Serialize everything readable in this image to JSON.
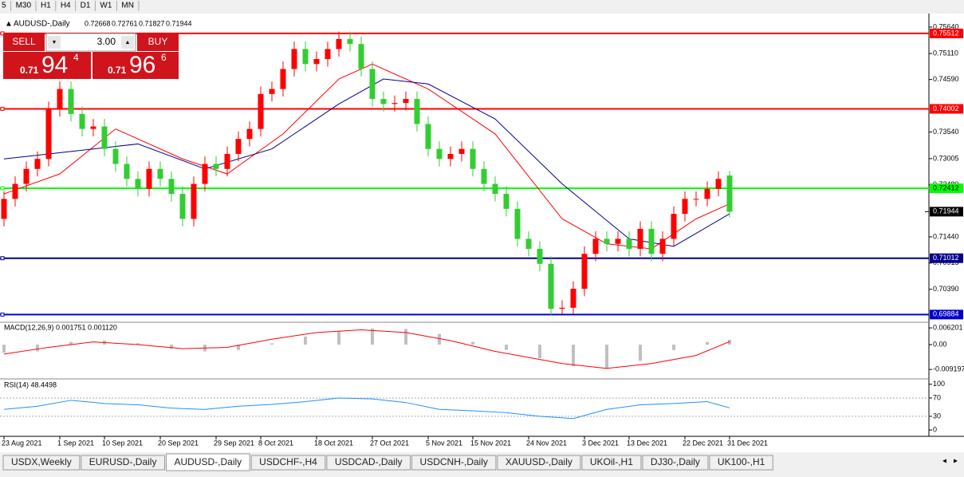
{
  "toolbar": {
    "timeframes": [
      "5",
      "M30",
      "H1",
      "H4",
      "D1",
      "W1",
      "MN"
    ]
  },
  "trade": {
    "sell": "SELL",
    "buy": "BUY",
    "lots": "3.00",
    "sell_price": [
      "0.71",
      "94",
      "4"
    ],
    "buy_price": [
      "0.71",
      "96",
      "6"
    ]
  },
  "chart_data": {
    "type": "candlestick",
    "title": "AUDUSD-,Daily",
    "up_color": "#ff0000",
    "down_color": "#32cd32",
    "candles": {
      "open": [
        0.718,
        0.722,
        0.725,
        0.728,
        0.73,
        0.74,
        0.744,
        0.739,
        0.736,
        0.7365,
        0.732,
        0.729,
        0.726,
        0.724,
        0.728,
        0.726,
        0.723,
        0.718,
        0.725,
        0.729,
        0.728,
        0.731,
        0.734,
        0.736,
        0.743,
        0.744,
        0.748,
        0.752,
        0.749,
        0.75,
        0.752,
        0.754,
        0.753,
        0.748,
        0.742,
        0.741,
        0.7412,
        0.742,
        0.737,
        0.732,
        0.73,
        0.731,
        0.732,
        0.728,
        0.725,
        0.723,
        0.72,
        0.714,
        0.712,
        0.709,
        0.7,
        0.7002,
        0.704,
        0.711,
        0.714,
        0.713,
        0.714,
        0.712,
        0.716,
        0.711,
        0.714,
        0.719,
        0.722,
        0.722,
        0.724,
        0.72668
      ],
      "high": [
        0.7235,
        0.7265,
        0.7295,
        0.7315,
        0.7415,
        0.7455,
        0.7455,
        0.7405,
        0.738,
        0.738,
        0.7335,
        0.7305,
        0.7275,
        0.7295,
        0.7295,
        0.7275,
        0.7245,
        0.7265,
        0.7305,
        0.7305,
        0.7325,
        0.7355,
        0.7375,
        0.7445,
        0.7455,
        0.7495,
        0.7535,
        0.7535,
        0.7515,
        0.7535,
        0.7555,
        0.7555,
        0.7545,
        0.7495,
        0.7435,
        0.7427,
        0.7435,
        0.7435,
        0.7385,
        0.7335,
        0.7325,
        0.7335,
        0.7335,
        0.7295,
        0.7265,
        0.7245,
        0.7215,
        0.7155,
        0.7135,
        0.7105,
        0.7017,
        0.7055,
        0.7125,
        0.7155,
        0.7155,
        0.7155,
        0.7155,
        0.7175,
        0.7175,
        0.7155,
        0.7205,
        0.7235,
        0.7235,
        0.7255,
        0.7275,
        0.72761
      ],
      "low": [
        0.7165,
        0.7205,
        0.7235,
        0.7265,
        0.7285,
        0.7385,
        0.7375,
        0.7345,
        0.7345,
        0.7305,
        0.7275,
        0.7245,
        0.7225,
        0.7225,
        0.7245,
        0.7215,
        0.7165,
        0.7165,
        0.7235,
        0.7265,
        0.7265,
        0.7295,
        0.7325,
        0.7345,
        0.7415,
        0.7425,
        0.7465,
        0.7475,
        0.7475,
        0.7485,
        0.7505,
        0.7515,
        0.7465,
        0.7405,
        0.7395,
        0.7395,
        0.7397,
        0.7355,
        0.7305,
        0.7285,
        0.7285,
        0.7295,
        0.7265,
        0.7235,
        0.7215,
        0.7185,
        0.7125,
        0.7105,
        0.7075,
        0.6988,
        0.699,
        0.699,
        0.7025,
        0.7095,
        0.7115,
        0.7115,
        0.7105,
        0.7105,
        0.7095,
        0.7095,
        0.7125,
        0.7175,
        0.7205,
        0.7205,
        0.7225,
        0.71827
      ],
      "close": [
        0.722,
        0.725,
        0.728,
        0.73,
        0.74,
        0.744,
        0.739,
        0.736,
        0.7365,
        0.732,
        0.729,
        0.726,
        0.724,
        0.728,
        0.726,
        0.723,
        0.718,
        0.725,
        0.729,
        0.728,
        0.731,
        0.734,
        0.736,
        0.743,
        0.744,
        0.748,
        0.752,
        0.749,
        0.75,
        0.752,
        0.754,
        0.753,
        0.748,
        0.742,
        0.741,
        0.7412,
        0.742,
        0.737,
        0.732,
        0.73,
        0.731,
        0.732,
        0.728,
        0.725,
        0.723,
        0.72,
        0.714,
        0.712,
        0.709,
        0.7,
        0.7002,
        0.704,
        0.711,
        0.714,
        0.713,
        0.714,
        0.712,
        0.716,
        0.711,
        0.714,
        0.719,
        0.722,
        0.722,
        0.724,
        0.726,
        0.71944
      ]
    },
    "series": [
      {
        "color": "#ff0000",
        "x": [
          0,
          5,
          10,
          16,
          20,
          25,
          30,
          33,
          38,
          44,
          50,
          54,
          58,
          62,
          65
        ],
        "values": [
          0.723,
          0.727,
          0.736,
          0.73,
          0.727,
          0.735,
          0.746,
          0.749,
          0.744,
          0.735,
          0.718,
          0.713,
          0.712,
          0.718,
          0.721
        ]
      },
      {
        "color": "#00008b",
        "x": [
          0,
          8,
          12,
          18,
          24,
          30,
          34,
          38,
          44,
          50,
          56,
          60,
          65
        ],
        "values": [
          0.73,
          0.732,
          0.733,
          0.728,
          0.732,
          0.741,
          0.746,
          0.745,
          0.738,
          0.725,
          0.714,
          0.7125,
          0.719
        ]
      }
    ],
    "levels": [
      {
        "value": 0.75512,
        "color": "#ff0000"
      },
      {
        "value": 0.74002,
        "color": "#ff0000"
      },
      {
        "value": 0.72412,
        "color": "#00ff00"
      },
      {
        "value": 0.71012,
        "color": "#00008b"
      },
      {
        "value": 0.69884,
        "color": "#0000cd"
      }
    ],
    "bid": 0.71944,
    "xlim": [
      -1,
      82
    ],
    "ylim": [
      0.6973,
      0.7591
    ],
    "yticks": [
      {
        "value": 0.7564,
        "label": "0.75640"
      },
      {
        "value": 0.7511,
        "label": "0.75110"
      },
      {
        "value": 0.7459,
        "label": "0.74590"
      },
      {
        "value": 0.7354,
        "label": "0.73540"
      },
      0.73005,
      {
        "value": 0.7248,
        "label": "0.72480"
      },
      {
        "value": 0.7144,
        "label": "0.71440"
      },
      0.70915,
      {
        "value": 0.7039,
        "label": "0.70390"
      }
    ],
    "xticks": [
      {
        "value": 0,
        "label": "23 Aug 2021"
      },
      {
        "value": 5,
        "label": "1 Sep 2021"
      },
      {
        "value": 9,
        "label": "10 Sep 2021"
      },
      {
        "value": 14,
        "label": "20 Sep 2021"
      },
      {
        "value": 19,
        "label": "29 Sep 2021"
      },
      {
        "value": 23,
        "label": "8 Oct 2021"
      },
      {
        "value": 28,
        "label": "18 Oct 2021"
      },
      {
        "value": 33,
        "label": "27 Oct 2021"
      },
      {
        "value": 38,
        "label": "5 Nov 2021"
      },
      {
        "value": 42,
        "label": "15 Nov 2021"
      },
      {
        "value": 47,
        "label": "24 Nov 2021"
      },
      {
        "value": 52,
        "label": "3 Dec 2021"
      },
      {
        "value": 56,
        "label": "13 Dec 2021"
      },
      {
        "value": 61,
        "label": "22 Dec 2021"
      },
      {
        "value": 65,
        "label": "31 Dec 2021"
      }
    ],
    "macd": {
      "label": "MACD(12,26,9) 0.001751 0.001120",
      "ylim": [
        -0.0124,
        0.008
      ],
      "yticks": [
        0.006201,
        {
          "value": 0,
          "label": "0.00"
        },
        -0.009197
      ],
      "hist": {
        "color": "#c0c0c0",
        "x": [
          0,
          3,
          6,
          9,
          12,
          15,
          18,
          21,
          24,
          27,
          30,
          33,
          36,
          39,
          42,
          45,
          48,
          51,
          54,
          57,
          60,
          63,
          65
        ],
        "values": [
          -0.003,
          -0.0025,
          0.001,
          0.0015,
          0.0005,
          -0.0015,
          -0.0025,
          -0.002,
          0.0005,
          0.003,
          0.005,
          0.006,
          0.0058,
          0.004,
          0.001,
          -0.002,
          -0.005,
          -0.008,
          -0.009,
          -0.006,
          -0.002,
          0.001,
          0.001751
        ]
      },
      "signal": {
        "color": "#ff0000",
        "x": [
          0,
          4,
          8,
          12,
          16,
          20,
          24,
          28,
          32,
          36,
          40,
          44,
          50,
          54,
          58,
          62,
          65
        ],
        "values": [
          -0.0035,
          -0.001,
          0.001,
          0,
          -0.0015,
          -0.001,
          0.002,
          0.0045,
          0.0055,
          0.0045,
          0.0015,
          -0.0025,
          -0.007,
          -0.0088,
          -0.007,
          -0.004,
          0.00112
        ]
      }
    },
    "rsi": {
      "label": "RSI(14) 48.4498",
      "ylim": [
        -12,
        110
      ],
      "yticks": [
        100,
        70,
        30,
        0
      ],
      "line": {
        "color": "#1e90ff",
        "x": [
          0,
          3,
          6,
          9,
          12,
          15,
          18,
          21,
          24,
          27,
          30,
          33,
          36,
          39,
          42,
          45,
          48,
          51,
          54,
          57,
          60,
          63,
          65
        ],
        "values": [
          45,
          52,
          65,
          58,
          55,
          48,
          45,
          52,
          56,
          62,
          70,
          68,
          60,
          45,
          42,
          38,
          30,
          25,
          45,
          55,
          58,
          62,
          48.4498
        ]
      }
    }
  },
  "tabs": {
    "items": [
      "USDX,Weekly",
      "EURUSD-,Daily",
      "AUDUSD-,Daily",
      "USDCHF-,H4",
      "USDCAD-,Daily",
      "USDCNH-,Daily",
      "XAUUSD-,Daily",
      "UKOil-,H1",
      "DJ30-,Daily",
      "UK100-,H1"
    ],
    "active": 2
  }
}
